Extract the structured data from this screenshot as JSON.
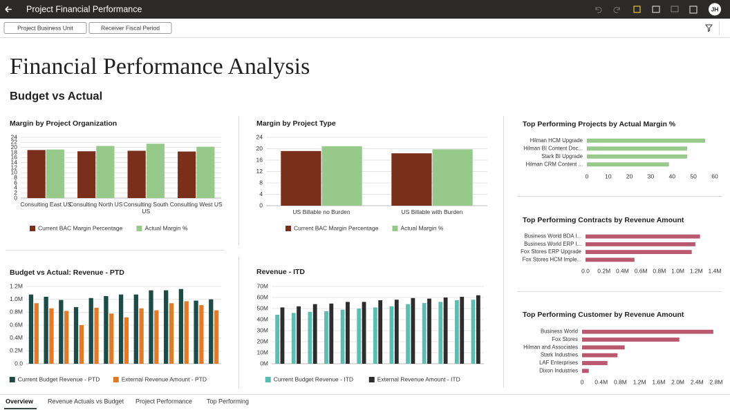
{
  "header": {
    "title": "Project Financial Performance",
    "user_initials": "JH"
  },
  "filters": [
    "Project Business Unit",
    "Receiver Fiscal Period"
  ],
  "page_title": "Financial Performance Analysis",
  "section_title": "Budget vs Actual",
  "tabs": [
    "Overview",
    "Revenue Actuals vs Budget",
    "Project Performance",
    "Top Performing"
  ],
  "chart_data": [
    {
      "type": "bar",
      "title": "Margin by Project Organization",
      "categories": [
        "Consulting East US",
        "Consulting North US",
        "Consulting South US",
        "Consulting West US"
      ],
      "series": [
        {
          "name": "Current BAC Margin Percentage",
          "color": "#7a2e1c",
          "values": [
            19,
            18.5,
            18.7,
            18.4
          ]
        },
        {
          "name": "Actual Margin %",
          "color": "#97c98b",
          "values": [
            19.2,
            20.6,
            21.5,
            20.3
          ]
        }
      ],
      "ylim": [
        0,
        24
      ],
      "yticks": [
        0,
        2,
        4,
        6,
        8,
        10,
        12,
        14,
        16,
        18,
        20,
        22,
        24
      ],
      "grid": true
    },
    {
      "type": "bar",
      "title": "Margin by Project Type",
      "categories": [
        "US Billable no Burden",
        "US Billable with Burden"
      ],
      "series": [
        {
          "name": "Current BAC Margin Percentage",
          "color": "#7a2e1c",
          "values": [
            19.2,
            18.4
          ]
        },
        {
          "name": "Actual Margin %",
          "color": "#97c98b",
          "values": [
            20.9,
            19.8
          ]
        }
      ],
      "ylim": [
        0,
        24
      ],
      "yticks": [
        0,
        4,
        8,
        12,
        16,
        20,
        24
      ],
      "grid": true
    },
    {
      "type": "barh",
      "title": "Top Performing Projects by Actual Margin %",
      "categories": [
        "Hilman HCM Upgrade",
        "Hilman BI Content Doc...",
        "Stark BI Upgrade",
        "Hilman CRM Content ..."
      ],
      "values": [
        55.5,
        47,
        47,
        38.5
      ],
      "color": "#97c98b",
      "xlim": [
        0,
        60
      ],
      "xticks": [
        0,
        10,
        20,
        30,
        40,
        50,
        60
      ],
      "grid": false
    },
    {
      "type": "barh",
      "title": "Top Performing Contracts by Revenue Amount",
      "categories": [
        "Business World BDA I...",
        "Business World ERP I...",
        "Fox Stores ERP Upgrade",
        "Fox Stores HCM Imple..."
      ],
      "values": [
        1240000,
        1190000,
        1150000,
        530000
      ],
      "color": "#b9586f",
      "xlim": [
        0,
        1400000
      ],
      "xticks": [
        {
          "value": 0,
          "label": "0.0"
        },
        {
          "value": 200000,
          "label": "0.2M"
        },
        {
          "value": 400000,
          "label": "0.4M"
        },
        {
          "value": 600000,
          "label": "0.6M"
        },
        {
          "value": 800000,
          "label": "0.8M"
        },
        {
          "value": 1000000,
          "label": "1.0M"
        },
        {
          "value": 1200000,
          "label": "1.2M"
        },
        {
          "value": 1400000,
          "label": "1.4M"
        }
      ],
      "grid": false
    },
    {
      "type": "barh",
      "title": "Top Performing Customer by Revenue Amount",
      "categories": [
        "Business World",
        "Fox Stores",
        "Hilman and Associates",
        "Stark Industries",
        "LAF Enterprises",
        "Dixon Industries"
      ],
      "values": [
        2740000,
        2030000,
        890000,
        740000,
        530000,
        140000
      ],
      "color": "#b9586f",
      "xlim": [
        0,
        2800000
      ],
      "xticks": [
        0,
        {
          "value": 400000,
          "label": "0.4M"
        },
        {
          "value": 800000,
          "label": "0.8M"
        },
        {
          "value": 1200000,
          "label": "1.2M"
        },
        {
          "value": 1600000,
          "label": "1.6M"
        },
        {
          "value": 2000000,
          "label": "2.0M"
        },
        {
          "value": 2400000,
          "label": "2.4M"
        },
        {
          "value": 2800000,
          "label": "2.8M"
        }
      ],
      "grid": false
    },
    {
      "type": "bar",
      "title": "Budget vs Actual: Revenue - PTD",
      "categories": [
        null,
        null,
        null,
        null,
        null,
        null,
        null,
        null,
        null,
        null,
        null,
        null,
        null
      ],
      "series": [
        {
          "name": "Current Budget Revenue - PTD",
          "color": "#1d4b47",
          "values": [
            1075000,
            1040000,
            990000,
            880000,
            1020000,
            1050000,
            1075000,
            1075000,
            1140000,
            1140000,
            1160000,
            980000,
            1000000
          ]
        },
        {
          "name": "External Revenue Amount - PTD",
          "color": "#e07b2a",
          "values": [
            940000,
            860000,
            820000,
            600000,
            870000,
            780000,
            720000,
            860000,
            830000,
            940000,
            970000,
            910000,
            830000
          ]
        }
      ],
      "ylim": [
        0,
        1200000
      ],
      "yticks": [
        {
          "value": 0,
          "label": "0.0"
        },
        {
          "value": 200000,
          "label": "0.2M"
        },
        {
          "value": 400000,
          "label": "0.4M"
        },
        {
          "value": 600000,
          "label": "0.6M"
        },
        {
          "value": 800000,
          "label": "0.8M"
        },
        {
          "value": 1000000,
          "label": "1.0M"
        },
        {
          "value": 1200000,
          "label": "1.2M"
        }
      ],
      "grid": true
    },
    {
      "type": "bar",
      "title": "Revenue - ITD",
      "categories": [
        null,
        null,
        null,
        null,
        null,
        null,
        null,
        null,
        null,
        null,
        null,
        null,
        null
      ],
      "series": [
        {
          "name": "Current Budget Revenue - ITD",
          "color": "#5cbdb3",
          "values": [
            44400000,
            46000000,
            47000000,
            47500000,
            49000000,
            50000000,
            51000000,
            52000000,
            54000000,
            55000000,
            56000000,
            57500000,
            58000000
          ]
        },
        {
          "name": "External Revenue Amount - ITD",
          "color": "#2d2d2d",
          "values": [
            51000000,
            52000000,
            54000000,
            54500000,
            56000000,
            56000000,
            57500000,
            58000000,
            59500000,
            59000000,
            60000000,
            60600000,
            62000000
          ]
        }
      ],
      "ylim": [
        0,
        70000000
      ],
      "yticks": [
        {
          "value": 0,
          "label": "0M"
        },
        {
          "value": 10000000,
          "label": "10M"
        },
        {
          "value": 20000000,
          "label": "20M"
        },
        {
          "value": 30000000,
          "label": "30M"
        },
        {
          "value": 40000000,
          "label": "40M"
        },
        {
          "value": 50000000,
          "label": "50M"
        },
        {
          "value": 60000000,
          "label": "60M"
        },
        {
          "value": 70000000,
          "label": "70M"
        }
      ],
      "grid": true
    }
  ]
}
